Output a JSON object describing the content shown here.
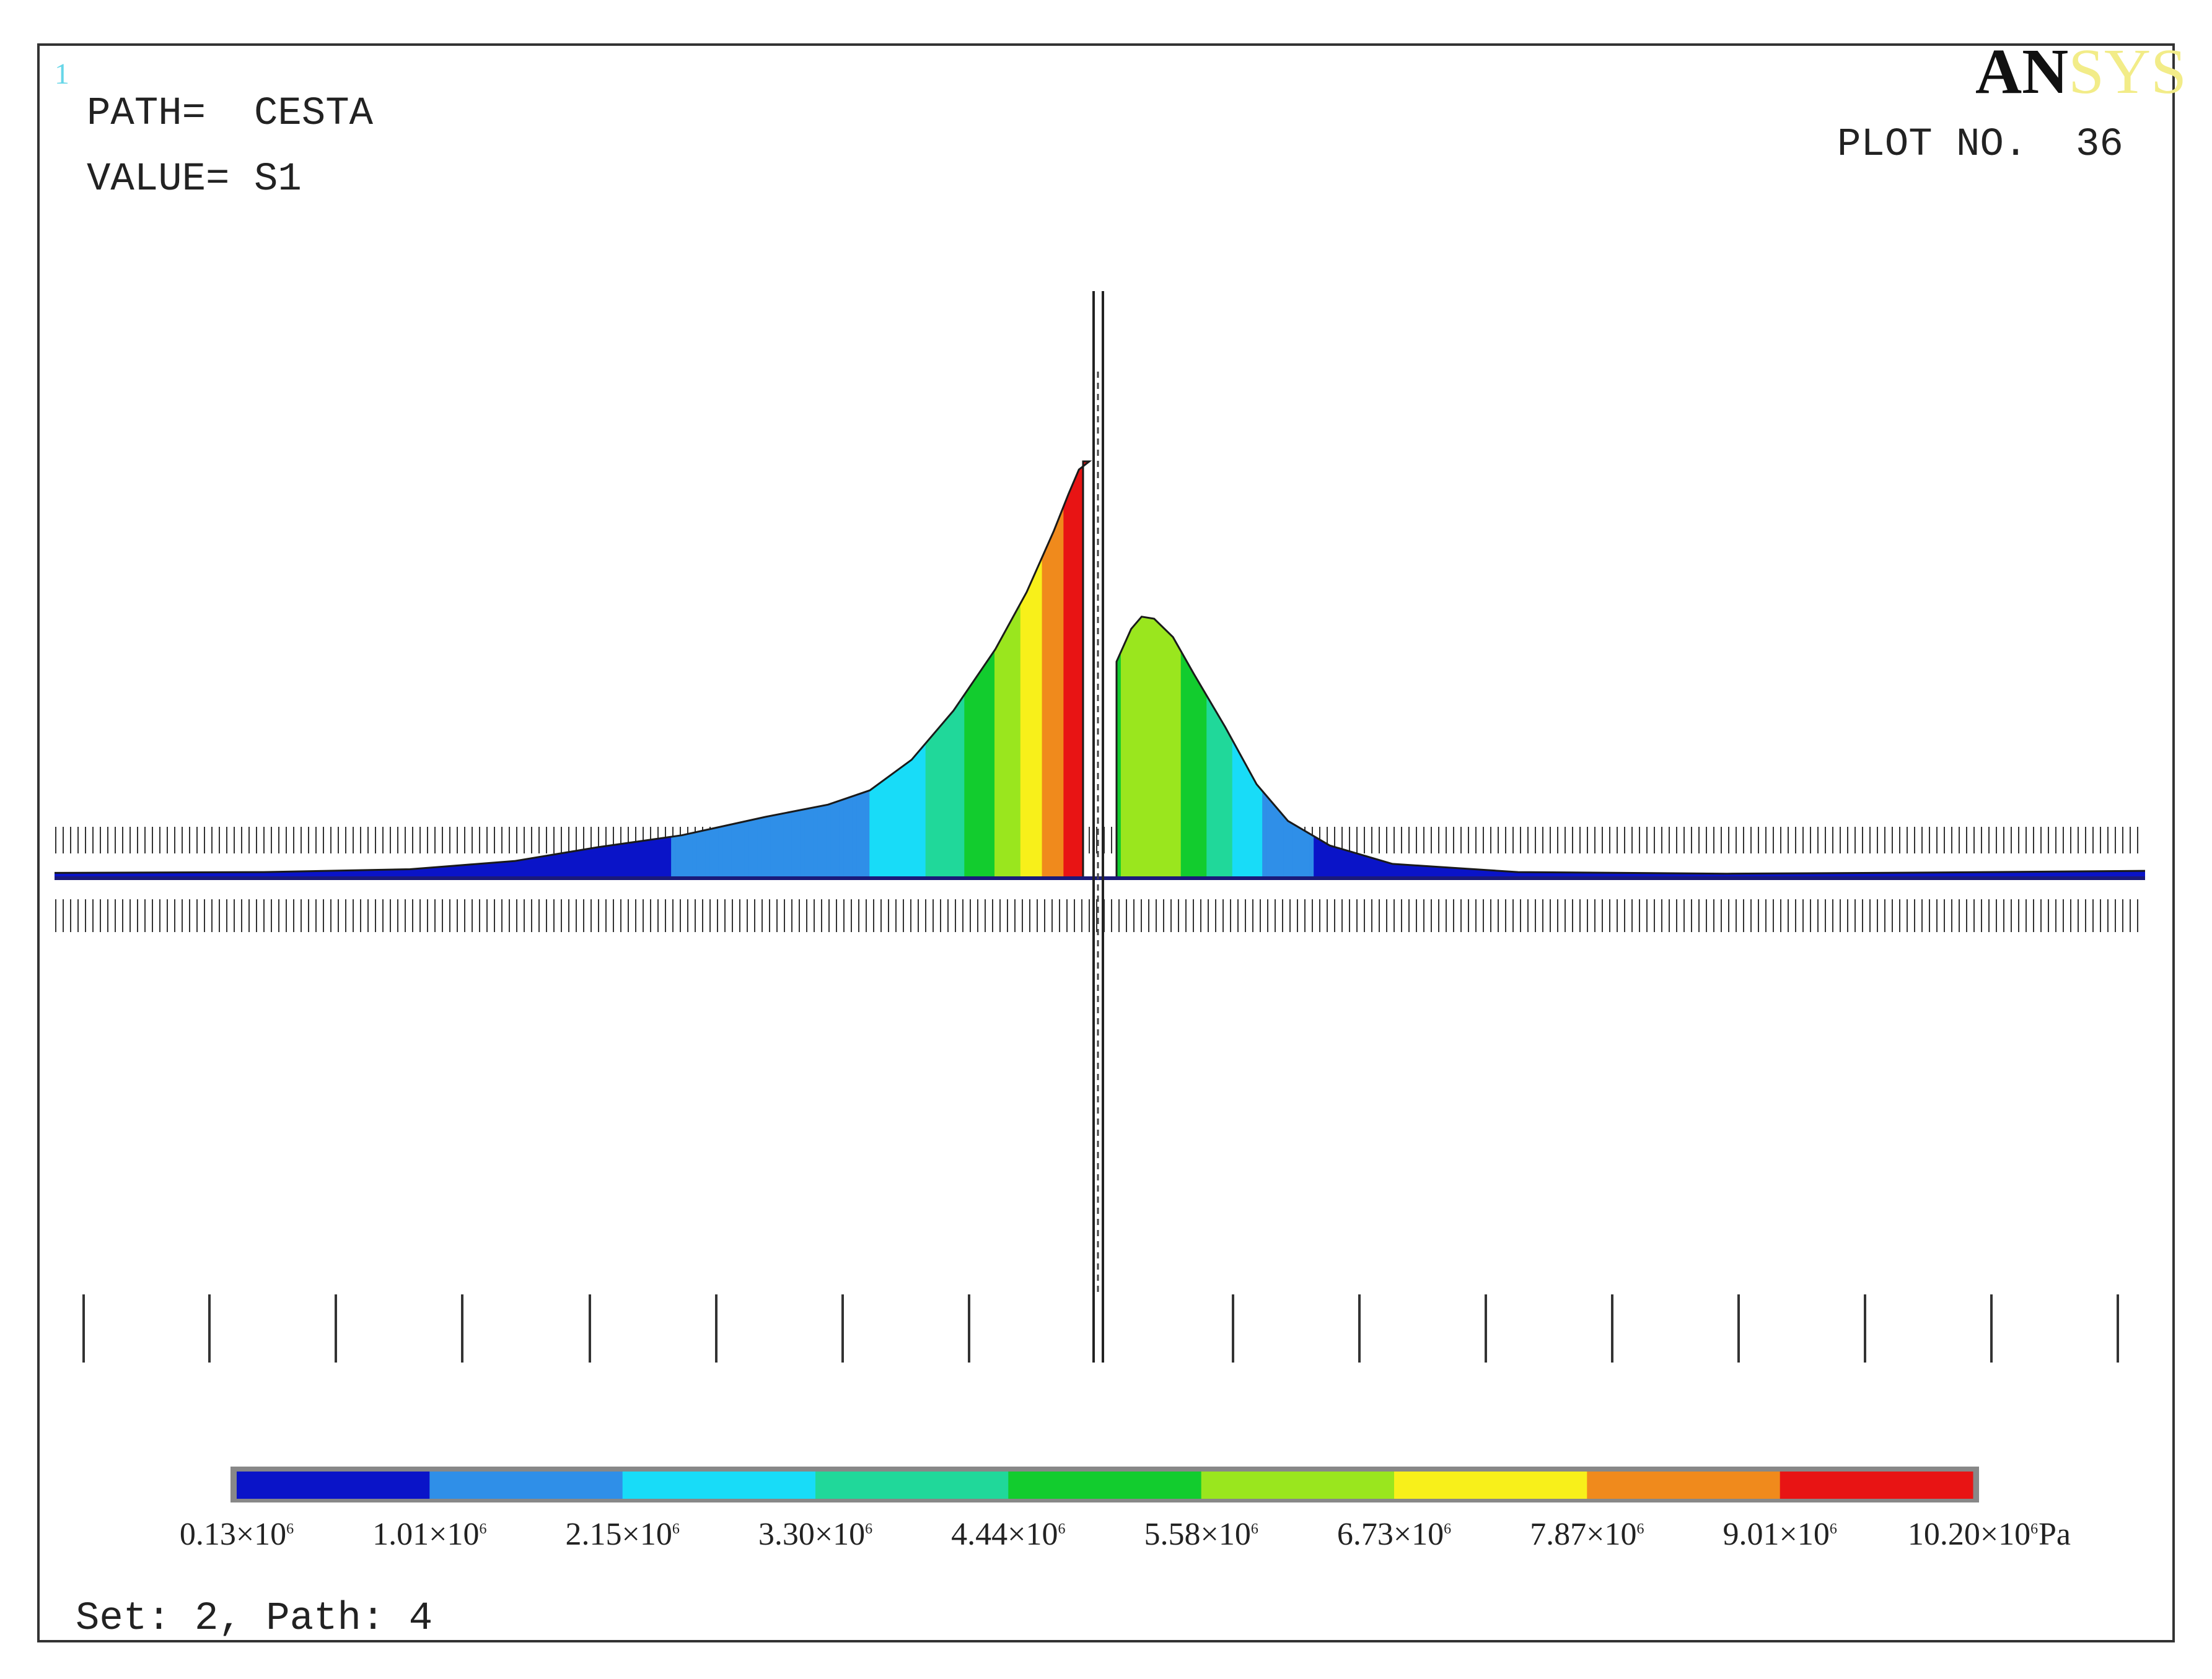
{
  "header": {
    "window_number": "1",
    "path_label": "PATH=",
    "path_value": "CESTA",
    "value_label": "VALUE=",
    "value_value": "S1",
    "plot_no_label": "PLOT NO.",
    "plot_no_value": "36",
    "logo_text": "ANSYS"
  },
  "footer": {
    "set_path": "Set: 2, Path: 4"
  },
  "colors": {
    "frame": "#333333",
    "baseline": "#1a1a7a",
    "window_number": "#66d6e8",
    "logo_dark": "#111111",
    "logo_light": "#f2ec88"
  },
  "chart_data": {
    "type": "area",
    "value_quantity": "S1",
    "path": "CESTA",
    "unit": "Pa",
    "contour_bands": {
      "colors": [
        "#0a14c8",
        "#2f8fe8",
        "#18dcf8",
        "#20d89a",
        "#12cc2e",
        "#9ae61e",
        "#f8f01a",
        "#f08a1c",
        "#e81414"
      ],
      "level_labels": [
        {
          "mantissa": "0.13×10",
          "exp": "6"
        },
        {
          "mantissa": "1.01×10",
          "exp": "6"
        },
        {
          "mantissa": "2.15×10",
          "exp": "6"
        },
        {
          "mantissa": "3.30×10",
          "exp": "6"
        },
        {
          "mantissa": "4.44×10",
          "exp": "6"
        },
        {
          "mantissa": "5.58×10",
          "exp": "6"
        },
        {
          "mantissa": "6.73×10",
          "exp": "6"
        },
        {
          "mantissa": "7.87×10",
          "exp": "6"
        },
        {
          "mantissa": "9.01×10",
          "exp": "6"
        },
        {
          "mantissa": "10.20×10",
          "exp": "6"
        }
      ],
      "levels_pa": [
        130000,
        1010000,
        2150000,
        3300000,
        4440000,
        5580000,
        6730000,
        7870000,
        9010000,
        10200000
      ]
    },
    "x_range": [
      0,
      1
    ],
    "y_range": [
      0,
      10200000
    ],
    "center_x": 0.5,
    "left_profile": [
      [
        0.0,
        130000
      ],
      [
        0.1,
        150000
      ],
      [
        0.17,
        220000
      ],
      [
        0.22,
        420000
      ],
      [
        0.26,
        760000
      ],
      [
        0.3,
        1050000
      ],
      [
        0.34,
        1500000
      ],
      [
        0.37,
        1800000
      ],
      [
        0.39,
        2150000
      ],
      [
        0.41,
        2900000
      ],
      [
        0.43,
        4100000
      ],
      [
        0.45,
        5600000
      ],
      [
        0.465,
        7000000
      ],
      [
        0.478,
        8500000
      ],
      [
        0.485,
        9400000
      ],
      [
        0.49,
        10000000
      ],
      [
        0.495,
        10200000
      ],
      [
        0.492,
        10200000
      ]
    ],
    "right_profile": [
      [
        0.508,
        5300000
      ],
      [
        0.515,
        6100000
      ],
      [
        0.52,
        6400000
      ],
      [
        0.526,
        6350000
      ],
      [
        0.535,
        5900000
      ],
      [
        0.545,
        5000000
      ],
      [
        0.56,
        3700000
      ],
      [
        0.575,
        2300000
      ],
      [
        0.59,
        1400000
      ],
      [
        0.61,
        800000
      ],
      [
        0.64,
        350000
      ],
      [
        0.7,
        150000
      ],
      [
        0.8,
        110000
      ],
      [
        0.9,
        140000
      ],
      [
        1.0,
        180000
      ]
    ]
  }
}
